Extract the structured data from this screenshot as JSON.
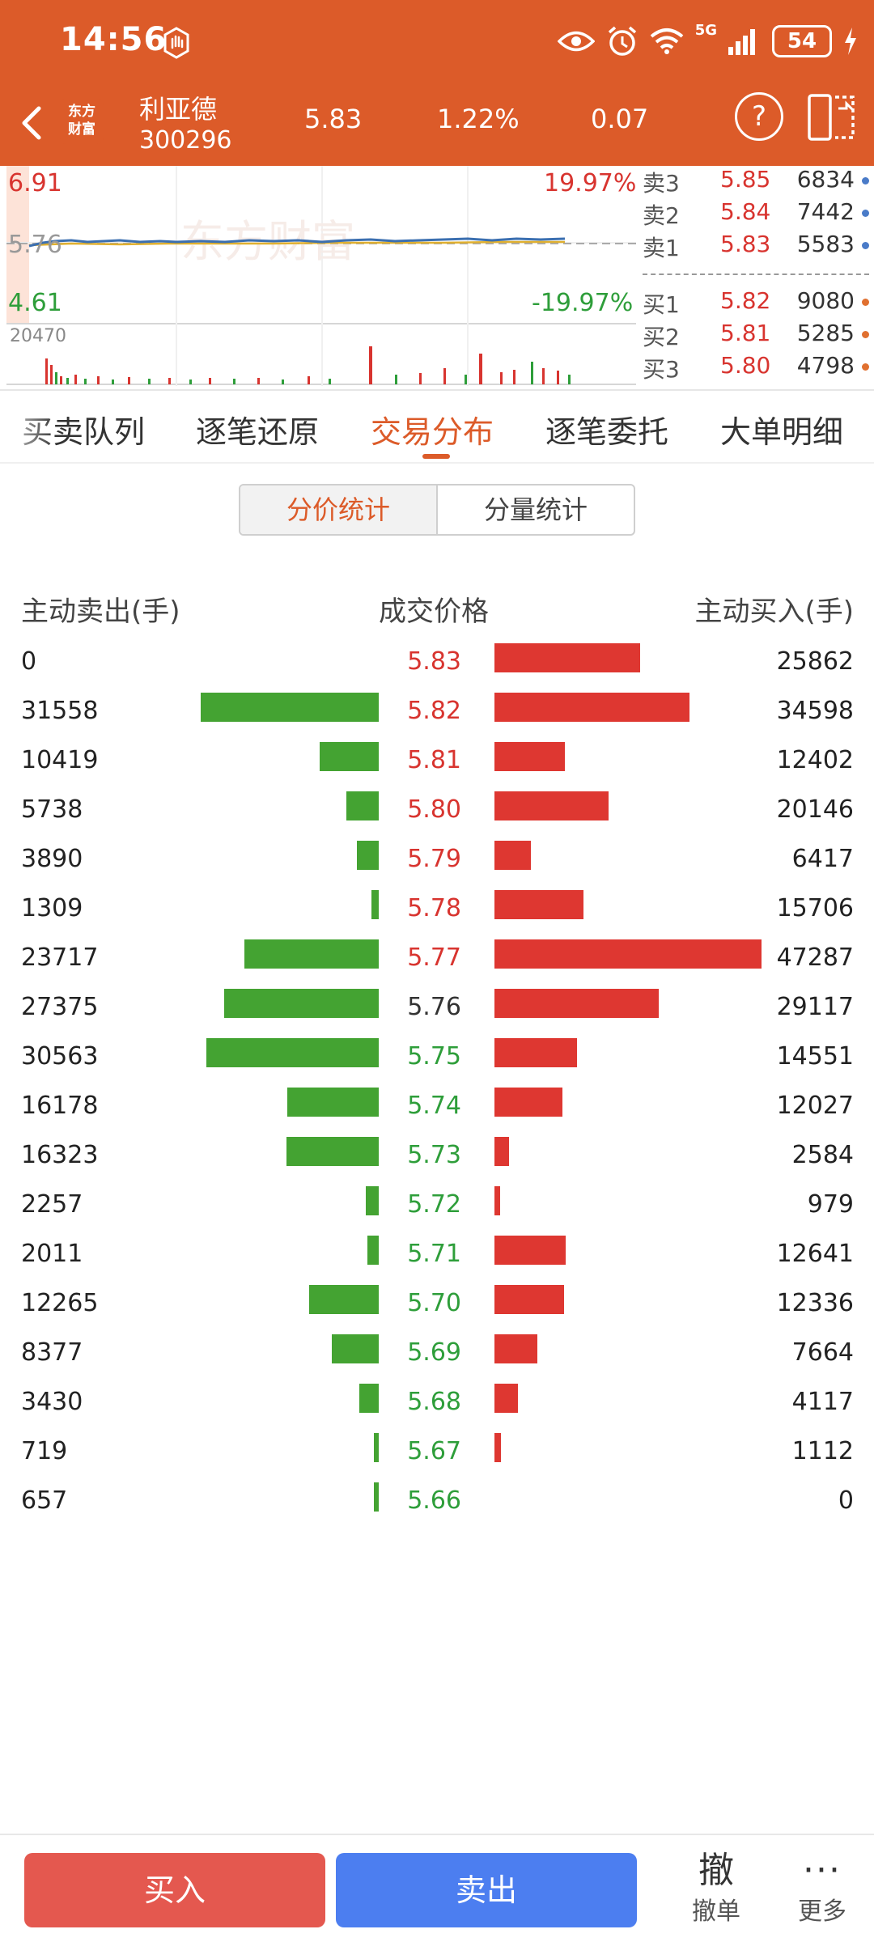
{
  "status_bar": {
    "time": "14:56",
    "network": "5G",
    "battery": "54"
  },
  "header": {
    "logo_text": [
      "东方",
      "财富"
    ],
    "stock_name": "利亚德",
    "stock_code": "300296",
    "price": "5.83",
    "change_pct": "1.22%",
    "change": "0.07",
    "help_label": "?"
  },
  "mini_chart": {
    "high_price": "6.91",
    "high_pct": "19.97%",
    "prev_close": "5.76",
    "low_price": "4.61",
    "low_pct": "-19.97%",
    "volume_max": "20470",
    "watermark": "东方财富",
    "colors": {
      "up": "#d8342f",
      "down": "#2e9e3a",
      "price_line": "#3b6fb0",
      "avg_line": "#e0b030"
    }
  },
  "order_book": {
    "asks": [
      {
        "label": "卖3",
        "price": "5.85",
        "volume": "6834"
      },
      {
        "label": "卖2",
        "price": "5.84",
        "volume": "7442"
      },
      {
        "label": "卖1",
        "price": "5.83",
        "volume": "5583"
      }
    ],
    "bids": [
      {
        "label": "买1",
        "price": "5.82",
        "volume": "9080"
      },
      {
        "label": "买2",
        "price": "5.81",
        "volume": "5285"
      },
      {
        "label": "买3",
        "price": "5.80",
        "volume": "4798"
      }
    ]
  },
  "tabs": [
    {
      "label": "买卖队列"
    },
    {
      "label": "逐笔还原"
    },
    {
      "label": "交易分布",
      "active": true
    },
    {
      "label": "逐笔委托"
    },
    {
      "label": "大单明细"
    }
  ],
  "segmented": {
    "price_stats": "分价统计",
    "volume_stats": "分量统计"
  },
  "distribution": {
    "col_sell": "主动卖出(手)",
    "col_price": "成交价格",
    "col_buy": "主动买入(手)",
    "rows": [
      {
        "sell": 0,
        "price": "5.83",
        "buy": 25862
      },
      {
        "sell": 31558,
        "price": "5.82",
        "buy": 34598
      },
      {
        "sell": 10419,
        "price": "5.81",
        "buy": 12402
      },
      {
        "sell": 5738,
        "price": "5.80",
        "buy": 20146
      },
      {
        "sell": 3890,
        "price": "5.79",
        "buy": 6417
      },
      {
        "sell": 1309,
        "price": "5.78",
        "buy": 15706
      },
      {
        "sell": 23717,
        "price": "5.77",
        "buy": 47287
      },
      {
        "sell": 27375,
        "price": "5.76",
        "buy": 29117
      },
      {
        "sell": 30563,
        "price": "5.75",
        "buy": 14551
      },
      {
        "sell": 16178,
        "price": "5.74",
        "buy": 12027
      },
      {
        "sell": 16323,
        "price": "5.73",
        "buy": 2584
      },
      {
        "sell": 2257,
        "price": "5.72",
        "buy": 979
      },
      {
        "sell": 2011,
        "price": "5.71",
        "buy": 12641
      },
      {
        "sell": 12265,
        "price": "5.70",
        "buy": 12336
      },
      {
        "sell": 8377,
        "price": "5.69",
        "buy": 7664
      },
      {
        "sell": 3430,
        "price": "5.68",
        "buy": 4117
      },
      {
        "sell": 719,
        "price": "5.67",
        "buy": 1112
      },
      {
        "sell": 657,
        "price": "5.66",
        "buy": 0
      }
    ],
    "colors": {
      "sell_bar": "#44a332",
      "buy_bar": "#de3731",
      "price_up": "#d8342f",
      "price_flat": "#333333",
      "price_down": "#2e9e3a"
    }
  },
  "bottom_bar": {
    "buy_label": "买入",
    "sell_label": "卖出",
    "cancel_glyph": "撤",
    "cancel_label": "撤单",
    "more_glyph": "···",
    "more_label": "更多"
  }
}
